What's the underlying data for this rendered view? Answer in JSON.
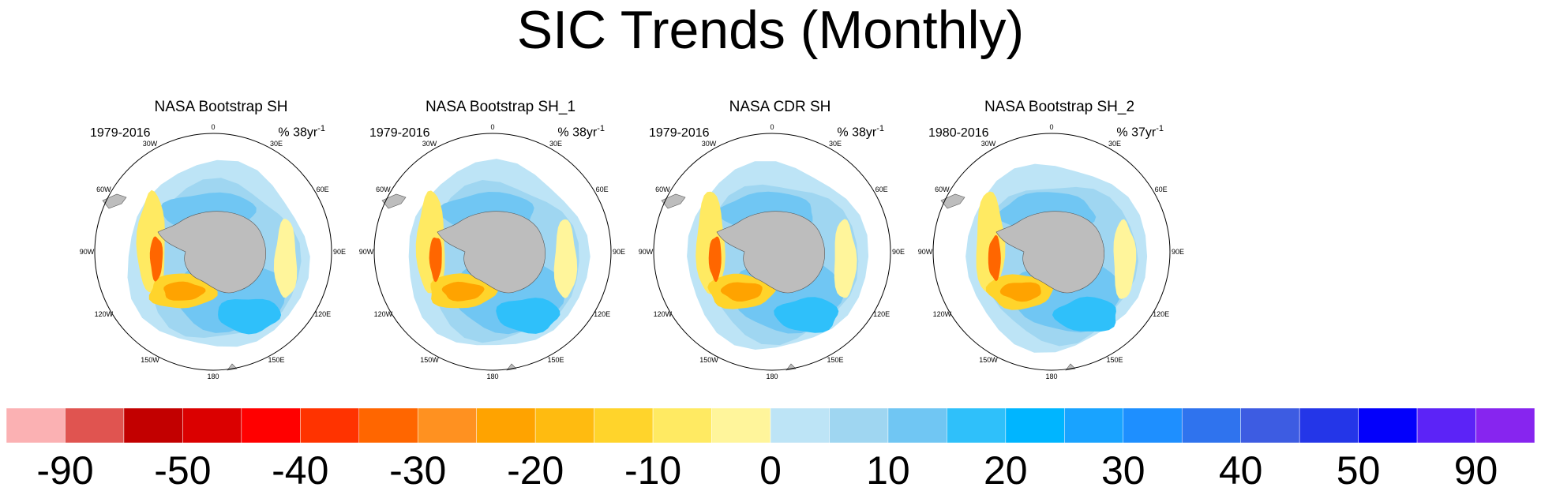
{
  "title": "SIC Trends (Monthly)",
  "panels": [
    {
      "name": "NASA Bootstrap SH",
      "years": "1979-2016",
      "units": "% 38yr",
      "units_sup": "-1"
    },
    {
      "name": "NASA Bootstrap SH_1",
      "years": "1979-2016",
      "units": "% 38yr",
      "units_sup": "-1"
    },
    {
      "name": "NASA CDR SH",
      "years": "1979-2016",
      "units": "% 38yr",
      "units_sup": "-1"
    },
    {
      "name": "NASA Bootstrap SH_2",
      "years": "1980-2016",
      "units": "% 37yr",
      "units_sup": "-1"
    }
  ],
  "longitude_labels": [
    "0",
    "30E",
    "60E",
    "90E",
    "120E",
    "150E",
    "180",
    "150W",
    "120W",
    "90W",
    "60W",
    "30W"
  ],
  "chart_data": {
    "type": "heatmap",
    "title": "SIC Trends (Monthly)",
    "colorbar": {
      "colors": [
        "#fbb1b3",
        "#e05450",
        "#c20000",
        "#db0000",
        "#ff0000",
        "#ff3300",
        "#ff6600",
        "#ff9120",
        "#ffa300",
        "#ffbb10",
        "#ffd42b",
        "#ffea62",
        "#fff59b",
        "#bde4f6",
        "#9fd6f1",
        "#70c6f3",
        "#2fc0fa",
        "#00b5ff",
        "#19a3ff",
        "#1e8fff",
        "#2f73ee",
        "#3d5ce2",
        "#2436e8",
        "#0300fb",
        "#5c23f7",
        "#8725ef"
      ],
      "tick_labels": [
        "-90",
        "-50",
        "-40",
        "-30",
        "-20",
        "-10",
        "0",
        "10",
        "20",
        "30",
        "40",
        "50",
        "90"
      ]
    }
  }
}
